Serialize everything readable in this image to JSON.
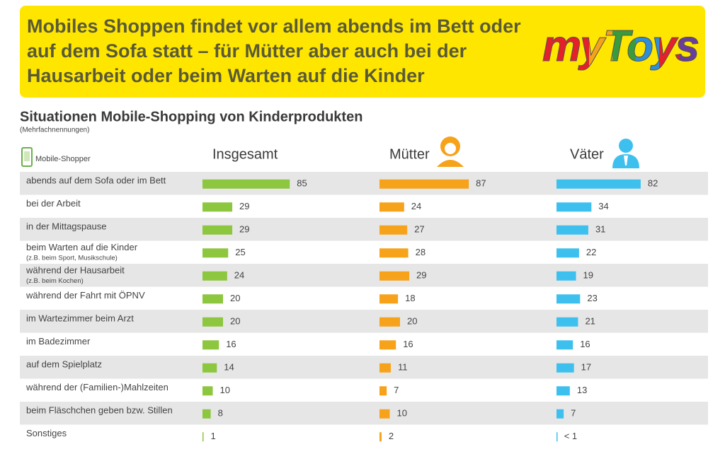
{
  "chart_data": {
    "type": "bar",
    "orientation": "horizontal",
    "title": "Mobiles Shoppen findet vor allem abends im Bett oder auf dem Sofa statt – für Mütter aber auch bei der Hausarbeit oder beim Warten auf die Kinder",
    "logo": "myToys",
    "subtitle": "Situationen Mobile-Shopping von Kinderprodukten",
    "note": "(Mehrfachnennungen)",
    "legend_label": "Mobile-Shopper",
    "categories": [
      "abends auf dem Sofa oder im Bett",
      "bei der Arbeit",
      "in der Mittagspause",
      "beim Warten auf die Kinder",
      "während der Hausarbeit",
      "während der Fahrt mit ÖPNV",
      "im Wartezimmer beim Arzt",
      "im Badezimmer",
      "auf dem Spielplatz",
      "während der (Familien-)Mahlzeiten",
      "beim Fläschchen geben bzw. Stillen",
      "Sonstiges"
    ],
    "category_notes": [
      null,
      null,
      null,
      "(z.B. beim Sport, Musikschule)",
      "(z.B. beim Kochen)",
      null,
      null,
      null,
      null,
      null,
      null,
      null
    ],
    "xlim": [
      0,
      100
    ],
    "series": [
      {
        "name": "Insgesamt",
        "color": "#8dc63f",
        "values": [
          85,
          29,
          29,
          25,
          24,
          20,
          20,
          16,
          14,
          10,
          8,
          1
        ]
      },
      {
        "name": "Mütter",
        "color": "#f7a21b",
        "values": [
          87,
          24,
          27,
          28,
          29,
          18,
          20,
          16,
          11,
          7,
          10,
          2
        ]
      },
      {
        "name": "Väter",
        "color": "#3ec0ef",
        "values": [
          82,
          34,
          31,
          22,
          19,
          23,
          21,
          16,
          17,
          13,
          7,
          0.5
        ],
        "value_labels": [
          "82",
          "34",
          "31",
          "22",
          "19",
          "23",
          "21",
          "16",
          "17",
          "13",
          "7",
          "< 1"
        ]
      }
    ]
  }
}
